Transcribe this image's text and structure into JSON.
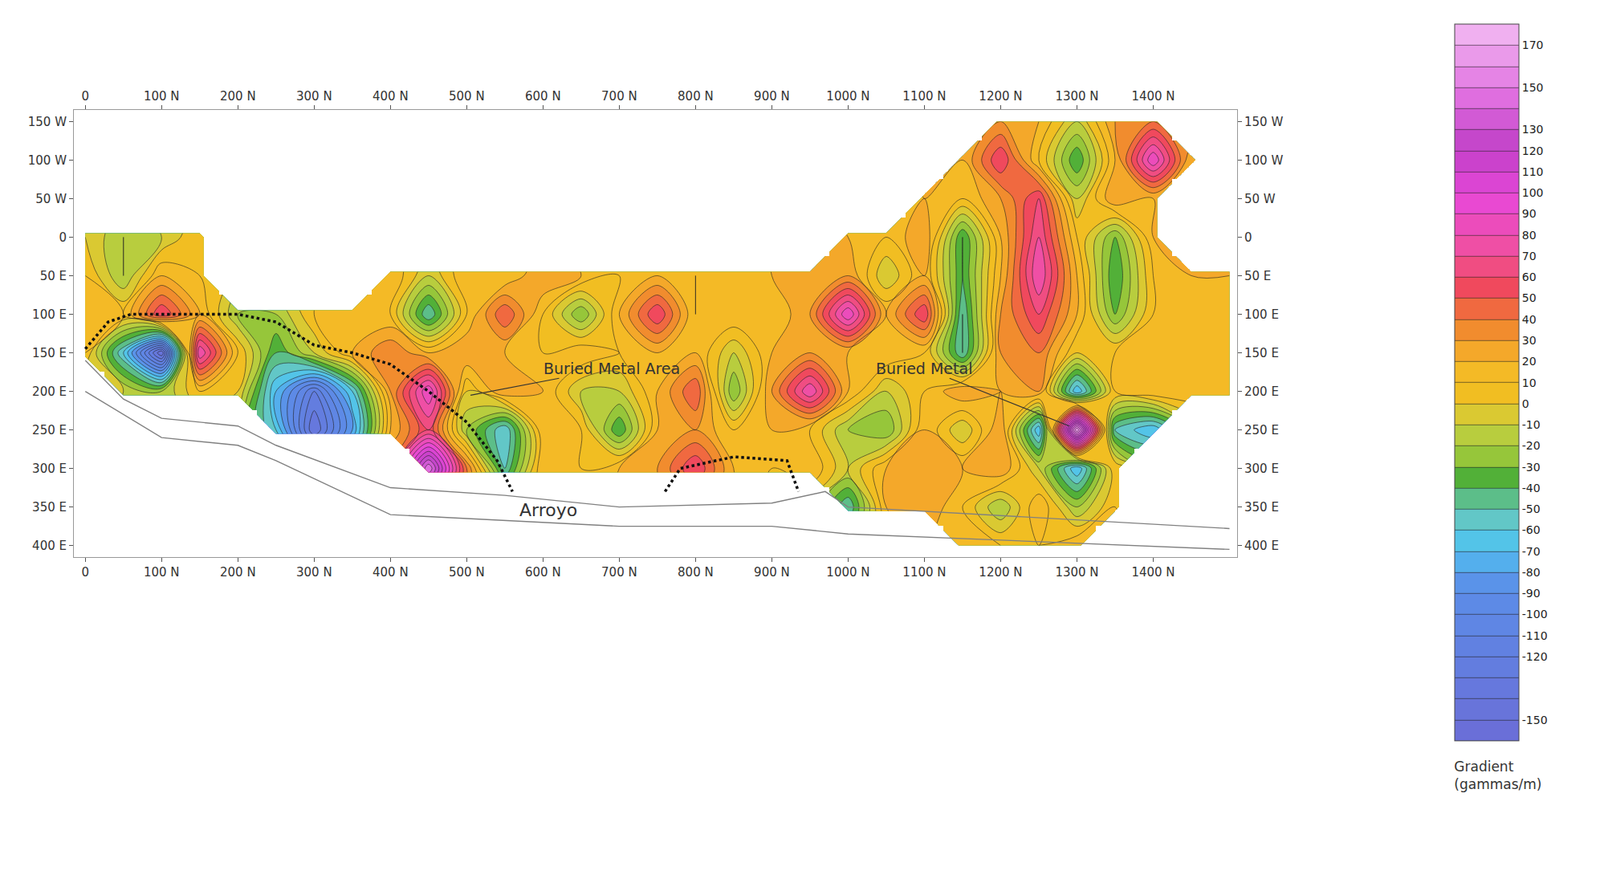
{
  "chart_data": {
    "type": "contour",
    "grid": false,
    "x": [
      0,
      50,
      100,
      150,
      200,
      250,
      300,
      350,
      400,
      450,
      500,
      550,
      600,
      650,
      700,
      750,
      800,
      850,
      900,
      950,
      1000,
      1050,
      1100,
      1150,
      1200,
      1250,
      1300,
      1350,
      1400,
      1450,
      1500
    ],
    "y": [
      -150,
      -100,
      -50,
      0,
      50,
      100,
      150,
      200,
      250,
      300,
      350,
      400
    ],
    "z": [
      [
        null,
        null,
        null,
        null,
        null,
        null,
        null,
        null,
        null,
        null,
        null,
        null,
        null,
        null,
        null,
        null,
        null,
        null,
        null,
        null,
        null,
        null,
        null,
        null,
        30,
        20,
        -10,
        30,
        40,
        null,
        null
      ],
      [
        null,
        null,
        null,
        null,
        null,
        null,
        null,
        null,
        null,
        null,
        null,
        null,
        null,
        null,
        null,
        null,
        null,
        null,
        null,
        null,
        null,
        null,
        null,
        20,
        60,
        10,
        -40,
        20,
        90,
        20,
        null
      ],
      [
        null,
        null,
        null,
        null,
        null,
        null,
        null,
        null,
        null,
        null,
        null,
        null,
        null,
        null,
        null,
        null,
        null,
        null,
        null,
        null,
        null,
        null,
        20,
        10,
        30,
        60,
        -10,
        30,
        20,
        null,
        null
      ],
      [
        0,
        -20,
        -10,
        10,
        null,
        null,
        null,
        null,
        null,
        null,
        null,
        null,
        null,
        null,
        null,
        null,
        null,
        null,
        null,
        null,
        20,
        10,
        30,
        -40,
        20,
        70,
        10,
        -30,
        20,
        null,
        null
      ],
      [
        10,
        -20,
        20,
        10,
        null,
        null,
        null,
        null,
        20,
        -10,
        20,
        10,
        30,
        20,
        10,
        20,
        10,
        20,
        20,
        30,
        30,
        -10,
        20,
        -40,
        20,
        80,
        20,
        -40,
        10,
        20,
        20
      ],
      [
        20,
        10,
        60,
        20,
        -20,
        -20,
        10,
        20,
        10,
        -50,
        10,
        50,
        10,
        -30,
        20,
        60,
        10,
        20,
        10,
        30,
        90,
        20,
        60,
        -50,
        30,
        60,
        20,
        -30,
        10,
        20,
        20
      ],
      [
        10,
        -60,
        -150,
        80,
        10,
        -40,
        -10,
        20,
        40,
        20,
        30,
        20,
        10,
        20,
        10,
        20,
        20,
        -10,
        20,
        30,
        20,
        20,
        10,
        -50,
        30,
        40,
        0,
        10,
        20,
        20,
        20
      ],
      [
        null,
        -10,
        -20,
        10,
        0,
        -70,
        -120,
        -60,
        30,
        90,
        0,
        30,
        20,
        -10,
        -10,
        20,
        50,
        -30,
        30,
        80,
        20,
        -10,
        10,
        30,
        20,
        30,
        -70,
        10,
        20,
        20,
        20
      ],
      [
        null,
        null,
        null,
        null,
        null,
        -60,
        -140,
        -80,
        20,
        60,
        -20,
        -60,
        20,
        10,
        -40,
        20,
        30,
        10,
        20,
        10,
        -20,
        -30,
        20,
        -10,
        30,
        -70,
        170,
        -50,
        -70,
        null,
        null
      ],
      [
        null,
        null,
        null,
        null,
        null,
        null,
        null,
        null,
        null,
        150,
        40,
        -50,
        20,
        10,
        20,
        30,
        60,
        20,
        10,
        20,
        -10,
        20,
        30,
        20,
        30,
        -10,
        -70,
        10,
        null,
        null,
        null
      ],
      [
        null,
        null,
        null,
        null,
        null,
        null,
        null,
        null,
        null,
        null,
        null,
        null,
        null,
        null,
        null,
        null,
        null,
        null,
        null,
        null,
        -50,
        20,
        30,
        10,
        -20,
        20,
        -20,
        10,
        null,
        null,
        null
      ],
      [
        null,
        null,
        null,
        null,
        null,
        null,
        null,
        null,
        null,
        null,
        null,
        null,
        null,
        null,
        null,
        null,
        null,
        null,
        null,
        null,
        null,
        null,
        null,
        20,
        10,
        10,
        20,
        null,
        null,
        null,
        null
      ]
    ],
    "xlim": [
      -15,
      1510
    ],
    "xticks": [
      {
        "value": 0,
        "label": "0"
      },
      {
        "value": 100,
        "label": "100 N"
      },
      {
        "value": 200,
        "label": "200 N"
      },
      {
        "value": 300,
        "label": "300 N"
      },
      {
        "value": 400,
        "label": "400 N"
      },
      {
        "value": 500,
        "label": "500 N"
      },
      {
        "value": 600,
        "label": "600 N"
      },
      {
        "value": 700,
        "label": "700 N"
      },
      {
        "value": 800,
        "label": "800 N"
      },
      {
        "value": 900,
        "label": "900 N"
      },
      {
        "value": 1000,
        "label": "1000 N"
      },
      {
        "value": 1100,
        "label": "1100 N"
      },
      {
        "value": 1200,
        "label": "1200 N"
      },
      {
        "value": 1300,
        "label": "1300 N"
      },
      {
        "value": 1400,
        "label": "1400 N"
      }
    ],
    "ylim": [
      -165,
      415
    ],
    "yticks": [
      {
        "value": -150,
        "label": "150 W"
      },
      {
        "value": -100,
        "label": "100 W"
      },
      {
        "value": -50,
        "label": "50 W"
      },
      0,
      {
        "value": 50,
        "label": "50 E"
      },
      {
        "value": 100,
        "label": "100 E"
      },
      {
        "value": 150,
        "label": "150 E"
      },
      {
        "value": 200,
        "label": "200 E"
      },
      {
        "value": 250,
        "label": "250 E"
      },
      {
        "value": 300,
        "label": "300 E"
      },
      {
        "value": 350,
        "label": "350 E"
      },
      {
        "value": 400,
        "label": "400 E"
      }
    ],
    "colorbar": {
      "title": [
        "Gradient",
        "(gammas/m)"
      ],
      "range": [
        -160,
        180
      ],
      "ticks": [
        170,
        150,
        130,
        120,
        110,
        100,
        90,
        80,
        70,
        60,
        50,
        40,
        30,
        20,
        10,
        0,
        -10,
        -20,
        -30,
        -40,
        -50,
        -60,
        -70,
        -80,
        -90,
        -100,
        -110,
        -120,
        -150
      ]
    },
    "annotations": [
      {
        "text": "Buried Metal Area",
        "x": 690,
        "y": 170,
        "arrow_to": [
          505,
          205
        ]
      },
      {
        "text": "Buried Metal",
        "x": 1100,
        "y": 170,
        "arrow_to": [
          1290,
          245
        ]
      },
      {
        "text": "Arroyo",
        "x": 607,
        "y": 354
      }
    ],
    "lines": [
      {
        "line_style": "solid",
        "color": "#808080",
        "x": [
          0,
          50,
          100,
          200,
          250,
          400,
          550,
          700,
          900,
          970,
          1000,
          1500
        ],
        "y": [
          160,
          210,
          235,
          245,
          270,
          325,
          335,
          350,
          345,
          330,
          350,
          378
        ]
      },
      {
        "line_style": "solid",
        "color": "#808080",
        "x": [
          0,
          50,
          100,
          200,
          250,
          400,
          700,
          900,
          1000,
          1500
        ],
        "y": [
          200,
          230,
          260,
          270,
          290,
          360,
          375,
          375,
          385,
          405
        ]
      },
      {
        "line_style": "dotted",
        "color": "#111111",
        "x": [
          0,
          30,
          60,
          150,
          200,
          250,
          300,
          350,
          400,
          450,
          500,
          540,
          560
        ],
        "y": [
          145,
          110,
          100,
          100,
          100,
          110,
          140,
          150,
          165,
          200,
          240,
          290,
          330
        ]
      },
      {
        "line_style": "dotted",
        "color": "#111111",
        "x": [
          760,
          780,
          850,
          920,
          935
        ],
        "y": [
          330,
          300,
          285,
          290,
          330
        ]
      }
    ]
  }
}
